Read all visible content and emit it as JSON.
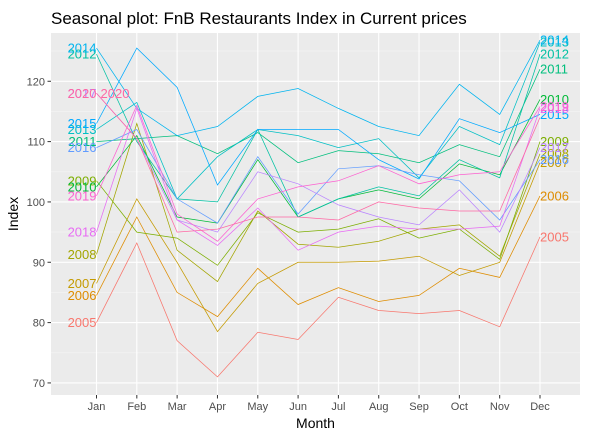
{
  "chart_data": {
    "type": "line",
    "title": "Seasonal plot: FnB Restaurants Index in Current prices",
    "xlabel": "Month",
    "ylabel": "Index",
    "categories": [
      "Jan",
      "Feb",
      "Mar",
      "Apr",
      "May",
      "Jun",
      "Jul",
      "Aug",
      "Sep",
      "Oct",
      "Nov",
      "Dec"
    ],
    "ylim": [
      68,
      128
    ],
    "yticks": [
      70,
      80,
      90,
      100,
      110,
      120
    ],
    "grid": true,
    "legend": "none",
    "series": [
      {
        "name": "2005",
        "color": "#F8766D",
        "values": [
          80.0,
          93.2,
          77.0,
          71.0,
          78.4,
          77.2,
          84.2,
          82.0,
          81.5,
          82.0,
          79.3,
          94.2
        ]
      },
      {
        "name": "2006",
        "color": "#DE8C00",
        "values": [
          84.5,
          97.5,
          85.0,
          81.0,
          89.0,
          83.0,
          85.8,
          83.5,
          84.5,
          89.0,
          87.5,
          101.0
        ]
      },
      {
        "name": "2007",
        "color": "#C49A00",
        "values": [
          86.5,
          100.5,
          90.0,
          78.5,
          86.5,
          90.0,
          90.0,
          90.2,
          91.0,
          87.8,
          90.0,
          106.5
        ]
      },
      {
        "name": "2008",
        "color": "#A3A500",
        "values": [
          91.3,
          113.0,
          92.0,
          86.8,
          98.5,
          93.0,
          92.5,
          93.5,
          95.5,
          96.2,
          91.0,
          108.0
        ]
      },
      {
        "name": "2009",
        "color": "#7CAE00",
        "values": [
          103.5,
          95.0,
          94.0,
          89.5,
          98.2,
          95.0,
          95.5,
          97.2,
          94.0,
          95.5,
          90.5,
          110.0
        ]
      },
      {
        "name": "2010",
        "color": "#00BA38",
        "values": [
          102.5,
          111.0,
          97.5,
          96.5,
          107.0,
          97.5,
          100.5,
          102.0,
          100.5,
          106.3,
          104.5,
          117.0
        ]
      },
      {
        "name": "2011",
        "color": "#00BF7D",
        "values": [
          110.0,
          110.5,
          111.0,
          108.0,
          111.5,
          106.5,
          108.5,
          108.0,
          106.5,
          109.5,
          107.5,
          122.0
        ]
      },
      {
        "name": "2012",
        "color": "#00C1A3",
        "values": [
          124.5,
          110.0,
          100.5,
          100.0,
          112.0,
          97.5,
          100.5,
          102.5,
          101.0,
          107.0,
          104.0,
          124.5
        ]
      },
      {
        "name": "2013",
        "color": "#00BFC4",
        "values": [
          112.0,
          116.5,
          100.5,
          107.5,
          112.0,
          111.0,
          109.0,
          110.5,
          104.0,
          112.5,
          109.5,
          126.5
        ]
      },
      {
        "name": "2014",
        "color": "#00B4EF",
        "values": [
          125.5,
          115.5,
          111.0,
          112.5,
          117.5,
          118.8,
          115.5,
          112.5,
          111.0,
          119.5,
          114.5,
          126.8
        ]
      },
      {
        "name": "2015",
        "color": "#00A9FF",
        "values": [
          113.0,
          125.5,
          119.0,
          102.8,
          112.0,
          112.0,
          112.0,
          107.0,
          103.8,
          113.8,
          111.5,
          114.5
        ]
      },
      {
        "name": "2016",
        "color": "#619CFF",
        "values": [
          109.0,
          112.0,
          100.5,
          96.5,
          107.5,
          98.0,
          105.5,
          106.0,
          104.5,
          103.5,
          97.0,
          107.0
        ]
      },
      {
        "name": "2017",
        "color": "#B983FF",
        "values": [
          118.0,
          110.5,
          97.0,
          95.0,
          105.0,
          103.0,
          99.5,
          97.5,
          96.2,
          102.0,
          95.0,
          109.0
        ]
      },
      {
        "name": "2018",
        "color": "#E76BF3",
        "values": [
          95.0,
          115.5,
          97.0,
          92.8,
          99.0,
          92.0,
          95.0,
          96.0,
          95.5,
          95.5,
          96.0,
          115.5
        ]
      },
      {
        "name": "2019",
        "color": "#FD61D1",
        "values": [
          101.0,
          116.0,
          98.0,
          93.5,
          100.5,
          102.5,
          103.5,
          106.0,
          103.0,
          104.5,
          105.0,
          115.8
        ]
      },
      {
        "name": "2020",
        "color": "#FF67A4",
        "values": [
          118.0,
          110.5,
          95.0,
          95.5,
          97.5,
          97.5,
          97.0,
          100.0,
          99.0,
          98.5,
          98.5,
          114.0
        ]
      }
    ],
    "right_label_order": [
      "2005",
      "2006",
      "2007",
      "2008",
      "2009",
      "2010",
      "2011",
      "2012",
      "2013",
      "2014",
      "2015",
      "2016",
      "2017",
      "2018",
      "2019"
    ]
  }
}
